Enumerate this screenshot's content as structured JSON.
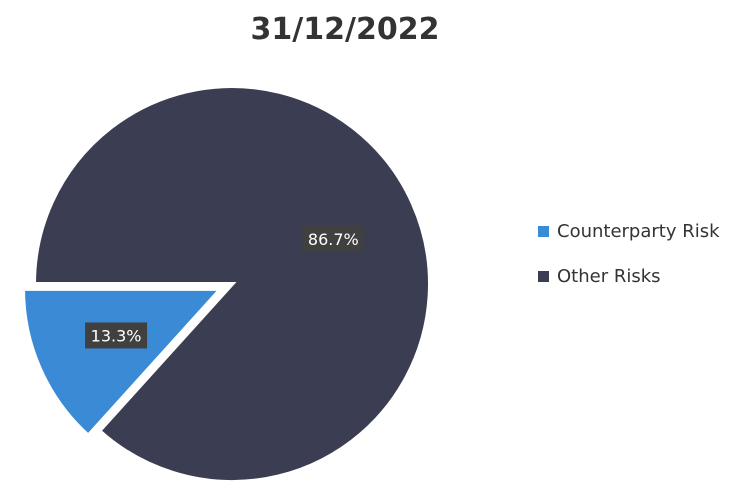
{
  "chart_data": {
    "type": "pie",
    "title": "31/12/2022",
    "slices": [
      {
        "label": "Counterparty Risk",
        "value": 13.3,
        "display": "13.3%",
        "color": "#3a8ad6"
      },
      {
        "label": "Other Risks",
        "value": 86.7,
        "display": "86.7%",
        "color": "#3b3e53"
      }
    ],
    "legend_position": "right"
  }
}
